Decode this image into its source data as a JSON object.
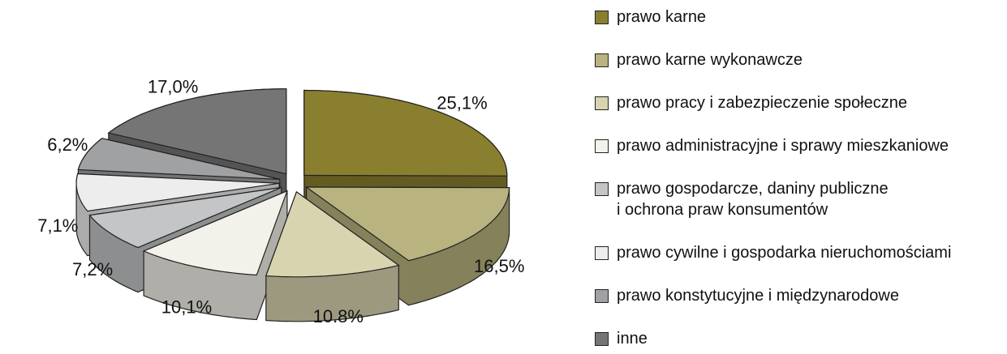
{
  "chart_data": {
    "type": "pie3d",
    "categories": [
      "prawo karne",
      "prawo karne wykonawcze",
      "prawo pracy i zabezpieczenie społeczne",
      "prawo administracyjne i sprawy mieszkaniowe",
      "prawo gospodarcze, daniny publiczne\ni ochrona praw konsumentów",
      "prawo cywilne i gospodarka nieruchomościami",
      "prawo konstytucyjne i międzynarodowe",
      "inne"
    ],
    "values": [
      25.1,
      16.5,
      10.8,
      10.1,
      7.2,
      7.1,
      6.2,
      17.0
    ],
    "value_labels": [
      "25,1%",
      "16,5%",
      "10.8%",
      "10,1%",
      "7,2%",
      "7,1%",
      "6,2%",
      "17,0%"
    ],
    "colors": [
      "#8a7f2f",
      "#b8b37f",
      "#d9d4b0",
      "#f3f2ea",
      "#c4c5c7",
      "#ededed",
      "#a0a1a3",
      "#757575"
    ],
    "legend": "right"
  }
}
